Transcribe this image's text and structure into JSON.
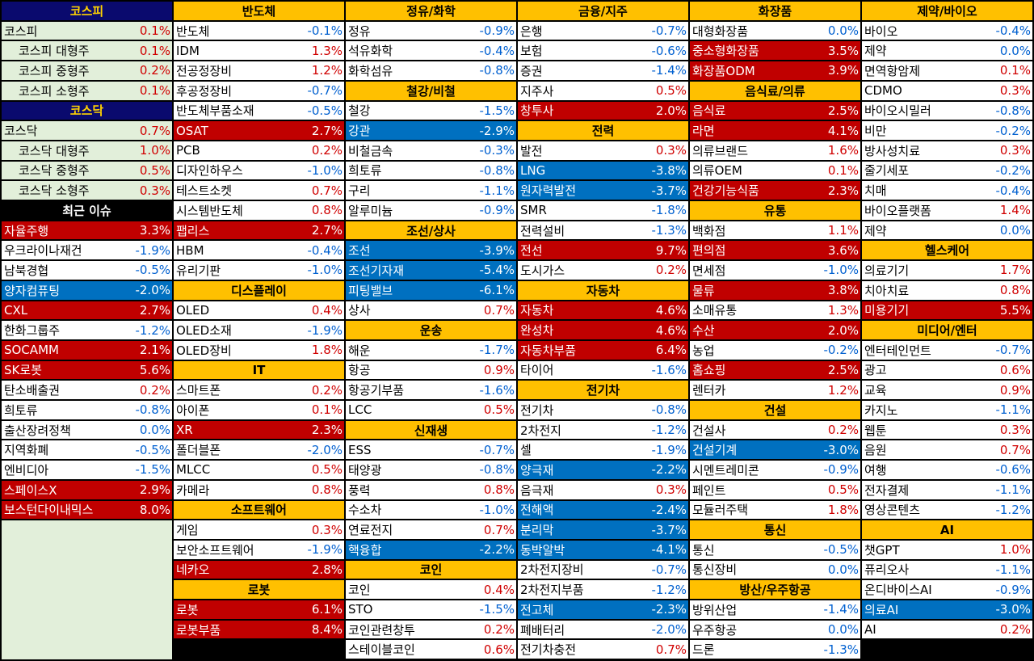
{
  "columns": [
    [
      {
        "h": "코스피",
        "style": "navy"
      },
      {
        "n": "코스피",
        "v": "0.1%"
      },
      {
        "n": "코스피 대형주",
        "v": "0.1%",
        "indent": true
      },
      {
        "n": "코스피 중형주",
        "v": "0.2%",
        "indent": true
      },
      {
        "n": "코스피 소형주",
        "v": "0.1%",
        "indent": true
      },
      {
        "h": "코스닥",
        "style": "navy"
      },
      {
        "n": "코스닥",
        "v": "0.7%"
      },
      {
        "n": "코스닥 대형주",
        "v": "1.0%",
        "indent": true
      },
      {
        "n": "코스닥 중형주",
        "v": "0.5%",
        "indent": true
      },
      {
        "n": "코스닥 소형주",
        "v": "0.3%",
        "indent": true
      },
      {
        "h": "최근 이슈",
        "style": "black"
      },
      {
        "n": "자율주행",
        "v": "3.3%",
        "hl": "red"
      },
      {
        "n": "우크라이나재건",
        "v": "-1.9%"
      },
      {
        "n": "남북경협",
        "v": "-0.5%"
      },
      {
        "n": "양자컴퓨팅",
        "v": "-2.0%",
        "hl": "blue"
      },
      {
        "n": "CXL",
        "v": "2.7%",
        "hl": "red"
      },
      {
        "n": "한화그룹주",
        "v": "-1.2%"
      },
      {
        "n": "SOCAMM",
        "v": "2.1%",
        "hl": "red"
      },
      {
        "n": "SK로봇",
        "v": "5.6%",
        "hl": "red"
      },
      {
        "n": "탄소배출권",
        "v": "0.2%"
      },
      {
        "n": "희토류",
        "v": "-0.8%"
      },
      {
        "n": "출산장려정책",
        "v": "0.0%"
      },
      {
        "n": "지역화폐",
        "v": "-0.5%"
      },
      {
        "n": "엔비디아",
        "v": "-1.5%"
      },
      {
        "n": "스페이스X",
        "v": "2.9%",
        "hl": "red"
      },
      {
        "n": "보스턴다이내믹스",
        "v": "8.0%",
        "hl": "red"
      }
    ],
    [
      {
        "h": "반도체"
      },
      {
        "n": "반도체",
        "v": "-0.1%"
      },
      {
        "n": "IDM",
        "v": "1.3%"
      },
      {
        "n": "전공정장비",
        "v": "1.2%"
      },
      {
        "n": "후공정장비",
        "v": "-0.7%"
      },
      {
        "n": "반도체부품소재",
        "v": "-0.5%"
      },
      {
        "n": "OSAT",
        "v": "2.7%",
        "hl": "red"
      },
      {
        "n": "PCB",
        "v": "0.2%"
      },
      {
        "n": "디자인하우스",
        "v": "-1.0%"
      },
      {
        "n": "테스트소켓",
        "v": "0.7%"
      },
      {
        "n": "시스템반도체",
        "v": "0.8%"
      },
      {
        "n": "팹리스",
        "v": "2.7%",
        "hl": "red"
      },
      {
        "n": "HBM",
        "v": "-0.4%"
      },
      {
        "n": "유리기판",
        "v": "-1.0%"
      },
      {
        "h": "디스플레이"
      },
      {
        "n": "OLED",
        "v": "0.4%"
      },
      {
        "n": "OLED소재",
        "v": "-1.9%"
      },
      {
        "n": "OLED장비",
        "v": "1.8%"
      },
      {
        "h": "IT"
      },
      {
        "n": "스마트폰",
        "v": "0.2%"
      },
      {
        "n": "아이폰",
        "v": "0.1%"
      },
      {
        "n": "XR",
        "v": "2.3%",
        "hl": "red"
      },
      {
        "n": "폴더블폰",
        "v": "-2.0%"
      },
      {
        "n": "MLCC",
        "v": "0.5%"
      },
      {
        "n": "카메라",
        "v": "0.8%"
      },
      {
        "h": "소프트웨어"
      },
      {
        "n": "게임",
        "v": "0.3%"
      },
      {
        "n": "보안소프트웨어",
        "v": "-1.9%"
      },
      {
        "n": "네카오",
        "v": "2.8%",
        "hl": "red"
      },
      {
        "h": "로봇"
      },
      {
        "n": "로봇",
        "v": "6.1%",
        "hl": "red"
      },
      {
        "n": "로봇부품",
        "v": "8.4%",
        "hl": "red"
      }
    ],
    [
      {
        "h": "정유/화학"
      },
      {
        "n": "정유",
        "v": "-0.9%"
      },
      {
        "n": "석유화학",
        "v": "-0.4%"
      },
      {
        "n": "화학섬유",
        "v": "-0.8%"
      },
      {
        "h": "철강/비철"
      },
      {
        "n": "철강",
        "v": "-1.5%"
      },
      {
        "n": "강관",
        "v": "-2.9%",
        "hl": "blue"
      },
      {
        "n": "비철금속",
        "v": "-0.3%"
      },
      {
        "n": "희토류",
        "v": "-0.8%"
      },
      {
        "n": "구리",
        "v": "-1.1%"
      },
      {
        "n": "알루미늄",
        "v": "-0.9%"
      },
      {
        "h": "조선/상사"
      },
      {
        "n": "조선",
        "v": "-3.9%",
        "hl": "blue"
      },
      {
        "n": "조선기자재",
        "v": "-5.4%",
        "hl": "blue"
      },
      {
        "n": "피팅밸브",
        "v": "-6.1%",
        "hl": "blue"
      },
      {
        "n": "상사",
        "v": "0.7%"
      },
      {
        "h": "운송"
      },
      {
        "n": "해운",
        "v": "-1.7%"
      },
      {
        "n": "항공",
        "v": "0.9%"
      },
      {
        "n": "항공기부품",
        "v": "-1.6%"
      },
      {
        "n": "LCC",
        "v": "0.5%"
      },
      {
        "h": "신재생"
      },
      {
        "n": "ESS",
        "v": "-0.7%"
      },
      {
        "n": "태양광",
        "v": "-0.8%"
      },
      {
        "n": "풍력",
        "v": "0.8%"
      },
      {
        "n": "수소차",
        "v": "-1.0%"
      },
      {
        "n": "연료전지",
        "v": "0.7%"
      },
      {
        "n": "핵융합",
        "v": "-2.2%",
        "hl": "blue"
      },
      {
        "h": "코인"
      },
      {
        "n": "코인",
        "v": "0.4%"
      },
      {
        "n": "STO",
        "v": "-1.5%"
      },
      {
        "n": "코인관련창투",
        "v": "0.2%"
      },
      {
        "n": "스테이블코인",
        "v": "0.6%"
      }
    ],
    [
      {
        "h": "금융/지주"
      },
      {
        "n": "은행",
        "v": "-0.7%"
      },
      {
        "n": "보험",
        "v": "-0.6%"
      },
      {
        "n": "증권",
        "v": "-1.4%"
      },
      {
        "n": "지주사",
        "v": "0.5%"
      },
      {
        "n": "창투사",
        "v": "2.0%",
        "hl": "red"
      },
      {
        "h": "전력"
      },
      {
        "n": "발전",
        "v": "0.3%"
      },
      {
        "n": "LNG",
        "v": "-3.8%",
        "hl": "blue"
      },
      {
        "n": "원자력발전",
        "v": "-3.7%",
        "hl": "blue"
      },
      {
        "n": "SMR",
        "v": "-1.8%"
      },
      {
        "n": "전력설비",
        "v": "-1.3%"
      },
      {
        "n": "전선",
        "v": "9.7%",
        "hl": "red"
      },
      {
        "n": "도시가스",
        "v": "0.2%"
      },
      {
        "h": "자동차"
      },
      {
        "n": "자동차",
        "v": "4.6%",
        "hl": "red"
      },
      {
        "n": "완성차",
        "v": "4.6%",
        "hl": "red"
      },
      {
        "n": "자동차부품",
        "v": "6.4%",
        "hl": "red"
      },
      {
        "n": "타이어",
        "v": "-1.6%"
      },
      {
        "h": "전기차"
      },
      {
        "n": "전기차",
        "v": "-0.8%"
      },
      {
        "n": "2차전지",
        "v": "-1.2%"
      },
      {
        "n": "셀",
        "v": "-1.9%"
      },
      {
        "n": "양극재",
        "v": "-2.2%",
        "hl": "blue"
      },
      {
        "n": "음극재",
        "v": "0.3%"
      },
      {
        "n": "전해액",
        "v": "-2.4%",
        "hl": "blue"
      },
      {
        "n": "분리막",
        "v": "-3.7%",
        "hl": "blue"
      },
      {
        "n": "동박알박",
        "v": "-4.1%",
        "hl": "blue"
      },
      {
        "n": "2차전지장비",
        "v": "-0.7%"
      },
      {
        "n": "2차전지부품",
        "v": "-1.2%"
      },
      {
        "n": "전고체",
        "v": "-2.3%",
        "hl": "blue"
      },
      {
        "n": "폐배터리",
        "v": "-2.0%"
      },
      {
        "n": "전기차충전",
        "v": "0.7%"
      }
    ],
    [
      {
        "h": "화장품"
      },
      {
        "n": "대형화장품",
        "v": "0.0%"
      },
      {
        "n": "중소형화장품",
        "v": "3.5%",
        "hl": "red"
      },
      {
        "n": "화장품ODM",
        "v": "3.9%",
        "hl": "red"
      },
      {
        "h": "음식료/의류"
      },
      {
        "n": "음식료",
        "v": "2.5%",
        "hl": "red"
      },
      {
        "n": "라면",
        "v": "4.1%",
        "hl": "red"
      },
      {
        "n": "의류브랜드",
        "v": "1.6%"
      },
      {
        "n": "의류OEM",
        "v": "0.1%"
      },
      {
        "n": "건강기능식품",
        "v": "2.3%",
        "hl": "red"
      },
      {
        "h": "유통"
      },
      {
        "n": "백화점",
        "v": "1.1%"
      },
      {
        "n": "편의점",
        "v": "3.6%",
        "hl": "red"
      },
      {
        "n": "면세점",
        "v": "-1.0%"
      },
      {
        "n": "물류",
        "v": "3.8%",
        "hl": "red"
      },
      {
        "n": "소매유통",
        "v": "1.3%"
      },
      {
        "n": "수산",
        "v": "2.0%",
        "hl": "red"
      },
      {
        "n": "농업",
        "v": "-0.2%"
      },
      {
        "n": "홈쇼핑",
        "v": "2.5%",
        "hl": "red"
      },
      {
        "n": "렌터카",
        "v": "1.2%"
      },
      {
        "h": "건설"
      },
      {
        "n": "건설사",
        "v": "0.2%"
      },
      {
        "n": "건설기계",
        "v": "-3.0%",
        "hl": "blue"
      },
      {
        "n": "시멘트레미콘",
        "v": "-0.9%"
      },
      {
        "n": "페인트",
        "v": "0.5%"
      },
      {
        "n": "모듈러주택",
        "v": "1.8%"
      },
      {
        "h": "통신"
      },
      {
        "n": "통신",
        "v": "-0.5%"
      },
      {
        "n": "통신장비",
        "v": "0.0%"
      },
      {
        "h": "방산/우주항공"
      },
      {
        "n": "방위산업",
        "v": "-1.4%"
      },
      {
        "n": "우주항공",
        "v": "0.0%"
      },
      {
        "n": "드론",
        "v": "-1.3%"
      }
    ],
    [
      {
        "h": "제약/바이오"
      },
      {
        "n": "바이오",
        "v": "-0.4%"
      },
      {
        "n": "제약",
        "v": "0.0%"
      },
      {
        "n": "면역항암제",
        "v": "0.1%"
      },
      {
        "n": "CDMO",
        "v": "0.3%"
      },
      {
        "n": "바이오시밀러",
        "v": "-0.8%"
      },
      {
        "n": "비만",
        "v": "-0.2%"
      },
      {
        "n": "방사성치료",
        "v": "0.3%"
      },
      {
        "n": "줄기세포",
        "v": "-0.2%"
      },
      {
        "n": "치매",
        "v": "-0.4%"
      },
      {
        "n": "바이오플랫폼",
        "v": "1.4%"
      },
      {
        "n": "제약",
        "v": "0.0%"
      },
      {
        "h": "헬스케어"
      },
      {
        "n": "의료기기",
        "v": "1.7%"
      },
      {
        "n": "치아치료",
        "v": "0.8%"
      },
      {
        "n": "미용기기",
        "v": "5.5%",
        "hl": "red"
      },
      {
        "h": "미디어/엔터"
      },
      {
        "n": "엔터테인먼트",
        "v": "-0.7%"
      },
      {
        "n": "광고",
        "v": "0.6%"
      },
      {
        "n": "교육",
        "v": "0.9%"
      },
      {
        "n": "카지노",
        "v": "-1.1%"
      },
      {
        "n": "웹툰",
        "v": "0.3%"
      },
      {
        "n": "음원",
        "v": "0.7%"
      },
      {
        "n": "여행",
        "v": "-0.6%"
      },
      {
        "n": "전자결제",
        "v": "-1.1%"
      },
      {
        "n": "영상콘텐츠",
        "v": "-1.2%"
      },
      {
        "h": "AI"
      },
      {
        "n": "챗GPT",
        "v": "1.0%"
      },
      {
        "n": "퓨리오사",
        "v": "-1.1%"
      },
      {
        "n": "온디바이스AI",
        "v": "-0.9%"
      },
      {
        "n": "의료AI",
        "v": "-3.0%",
        "hl": "blue"
      },
      {
        "n": "AI",
        "v": "0.2%"
      }
    ]
  ],
  "colors": {
    "header_gold": "#ffc000",
    "header_navy": "#0a0a6e",
    "header_navy_text": "#ffd200",
    "highlight_up": "#c00000",
    "highlight_down": "#0070c0",
    "text_up": "#d00000",
    "text_down": "#0060d0",
    "market_row_bg": "#e2efda",
    "first_column_fill": "#e2efda"
  }
}
